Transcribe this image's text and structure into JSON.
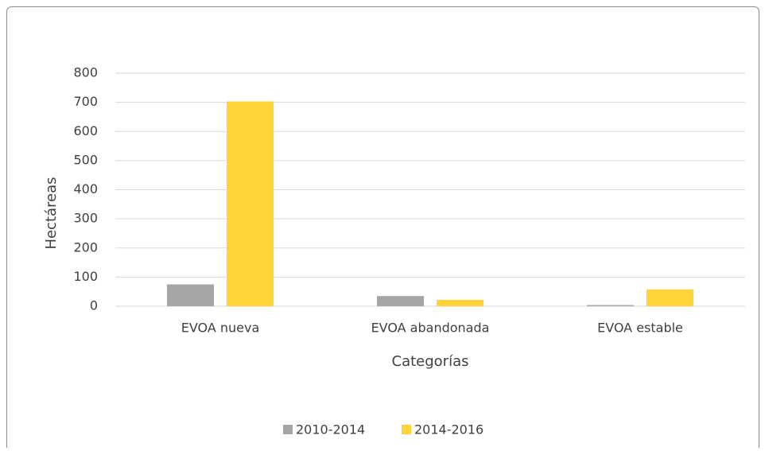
{
  "chart_data": {
    "type": "bar",
    "categories": [
      "EVOA nueva",
      "EVOA abandonada",
      "EVOA estable"
    ],
    "series": [
      {
        "name": "2010-2014",
        "color": "#a5a5a5",
        "values": [
          75,
          35,
          4
        ]
      },
      {
        "name": "2014-2016",
        "color": "#ffd43b",
        "values": [
          703,
          22,
          58
        ]
      }
    ],
    "xlabel": "Categorías",
    "ylabel": "Hectáreas",
    "ylim": [
      0,
      800
    ],
    "yticks": [
      0,
      100,
      200,
      300,
      400,
      500,
      600,
      700,
      800
    ],
    "grid": true,
    "legend": "bottom"
  }
}
